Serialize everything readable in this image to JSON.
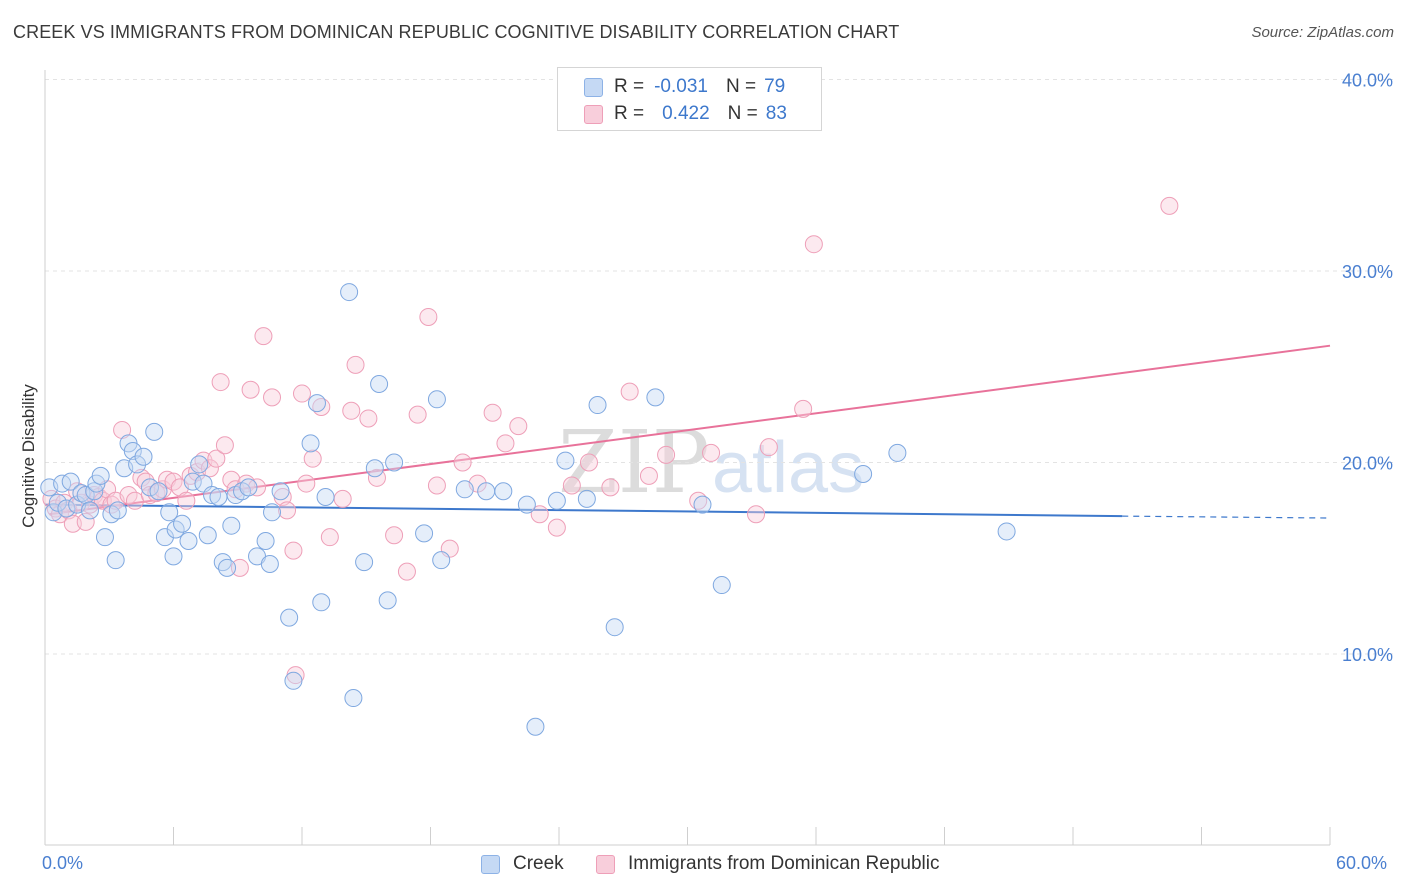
{
  "header": {
    "title": "CREEK VS IMMIGRANTS FROM DOMINICAN REPUBLIC COGNITIVE DISABILITY CORRELATION CHART",
    "source": "Source: ZipAtlas.com"
  },
  "legend": {
    "rows": [
      {
        "r_label": "R =",
        "r_value": "-0.031",
        "n_label": "N =",
        "n_value": "79"
      },
      {
        "r_label": "R =",
        "r_value": "0.422",
        "n_label": "N =",
        "n_value": "83"
      }
    ],
    "bottom": [
      "Creek",
      "Immigrants from Dominican Republic"
    ]
  },
  "watermark": {
    "zip": "ZIP",
    "atlas": "atlas"
  },
  "colors": {
    "creek": "#3d78cc",
    "creek_fill": "#c5d9f4",
    "dominican": "#e8729a",
    "dominican_fill": "#f8cedb"
  },
  "chart_data": {
    "type": "scatter",
    "title": "CREEK VS IMMIGRANTS FROM DOMINICAN REPUBLIC COGNITIVE DISABILITY CORRELATION CHART",
    "xlabel": "",
    "ylabel": "Cognitive Disability",
    "xlim": [
      0,
      60
    ],
    "ylim": [
      0,
      42
    ],
    "x_tick_labels": [
      "0.0%",
      "60.0%"
    ],
    "y_ticks": [
      10,
      20,
      30,
      40
    ],
    "y_tick_labels": [
      "10.0%",
      "20.0%",
      "30.0%",
      "40.0%"
    ],
    "grid": true,
    "legend_position": "top-center",
    "series": [
      {
        "name": "Creek",
        "r": -0.031,
        "n": 79,
        "trend": {
          "x": [
            0,
            50.3
          ],
          "y": [
            17.8,
            17.2
          ],
          "dashed_to_x": 60,
          "dashed_to_y": 17.1
        },
        "points": [
          [
            0.2,
            18.7
          ],
          [
            0.4,
            17.4
          ],
          [
            0.6,
            17.9
          ],
          [
            0.8,
            18.9
          ],
          [
            1.0,
            17.6
          ],
          [
            1.2,
            19.0
          ],
          [
            1.5,
            17.8
          ],
          [
            1.7,
            18.4
          ],
          [
            1.9,
            18.3
          ],
          [
            2.1,
            17.5
          ],
          [
            2.3,
            18.5
          ],
          [
            2.4,
            18.9
          ],
          [
            2.6,
            19.3
          ],
          [
            2.8,
            16.1
          ],
          [
            3.1,
            17.3
          ],
          [
            3.3,
            14.9
          ],
          [
            3.4,
            17.5
          ],
          [
            3.7,
            19.7
          ],
          [
            3.9,
            21.0
          ],
          [
            4.1,
            20.6
          ],
          [
            4.3,
            19.9
          ],
          [
            4.6,
            20.3
          ],
          [
            4.9,
            18.7
          ],
          [
            5.1,
            21.6
          ],
          [
            5.3,
            18.5
          ],
          [
            5.6,
            16.1
          ],
          [
            5.8,
            17.4
          ],
          [
            6.0,
            15.1
          ],
          [
            6.1,
            16.5
          ],
          [
            6.4,
            16.8
          ],
          [
            6.7,
            15.9
          ],
          [
            6.9,
            19.0
          ],
          [
            7.2,
            19.9
          ],
          [
            7.4,
            18.9
          ],
          [
            7.6,
            16.2
          ],
          [
            7.8,
            18.3
          ],
          [
            8.1,
            18.2
          ],
          [
            8.3,
            14.8
          ],
          [
            8.5,
            14.5
          ],
          [
            8.7,
            16.7
          ],
          [
            8.9,
            18.3
          ],
          [
            9.2,
            18.5
          ],
          [
            9.5,
            18.7
          ],
          [
            9.9,
            15.1
          ],
          [
            10.3,
            15.9
          ],
          [
            10.5,
            14.7
          ],
          [
            10.6,
            17.4
          ],
          [
            11.0,
            18.5
          ],
          [
            11.4,
            11.9
          ],
          [
            11.6,
            8.6
          ],
          [
            12.7,
            23.1
          ],
          [
            12.4,
            21.0
          ],
          [
            12.9,
            12.7
          ],
          [
            13.1,
            18.2
          ],
          [
            14.2,
            28.9
          ],
          [
            14.4,
            7.7
          ],
          [
            14.9,
            14.8
          ],
          [
            15.4,
            19.7
          ],
          [
            15.6,
            24.1
          ],
          [
            16.0,
            12.8
          ],
          [
            16.3,
            20.0
          ],
          [
            17.7,
            16.3
          ],
          [
            18.3,
            23.3
          ],
          [
            18.5,
            14.9
          ],
          [
            19.6,
            18.6
          ],
          [
            20.6,
            18.5
          ],
          [
            21.4,
            18.5
          ],
          [
            22.5,
            17.8
          ],
          [
            22.9,
            6.2
          ],
          [
            23.9,
            18.0
          ],
          [
            24.3,
            20.1
          ],
          [
            25.3,
            18.1
          ],
          [
            25.8,
            23.0
          ],
          [
            26.6,
            11.4
          ],
          [
            28.5,
            23.4
          ],
          [
            30.7,
            17.8
          ],
          [
            31.6,
            13.6
          ],
          [
            38.2,
            19.4
          ],
          [
            39.8,
            20.5
          ],
          [
            44.9,
            16.4
          ]
        ]
      },
      {
        "name": "Immigrants from Dominican Republic",
        "r": 0.422,
        "n": 83,
        "trend": {
          "x": [
            0.2,
            60
          ],
          "y": [
            17.3,
            26.1
          ]
        },
        "points": [
          [
            0.3,
            18.1
          ],
          [
            0.5,
            17.6
          ],
          [
            0.7,
            17.3
          ],
          [
            0.9,
            17.9
          ],
          [
            1.1,
            17.5
          ],
          [
            1.3,
            16.8
          ],
          [
            1.5,
            18.5
          ],
          [
            1.7,
            17.9
          ],
          [
            1.9,
            16.9
          ],
          [
            2.1,
            17.8
          ],
          [
            2.3,
            18.3
          ],
          [
            2.5,
            18.2
          ],
          [
            2.7,
            18.0
          ],
          [
            2.9,
            18.6
          ],
          [
            3.1,
            17.8
          ],
          [
            3.3,
            18.0
          ],
          [
            3.6,
            21.7
          ],
          [
            3.9,
            18.3
          ],
          [
            4.2,
            18.0
          ],
          [
            4.5,
            19.2
          ],
          [
            4.7,
            19.0
          ],
          [
            4.9,
            18.3
          ],
          [
            5.2,
            18.4
          ],
          [
            5.5,
            18.6
          ],
          [
            5.7,
            19.1
          ],
          [
            6.0,
            19.0
          ],
          [
            6.3,
            18.7
          ],
          [
            6.6,
            18.0
          ],
          [
            6.8,
            19.3
          ],
          [
            7.1,
            19.5
          ],
          [
            7.4,
            20.1
          ],
          [
            7.7,
            19.7
          ],
          [
            8.0,
            20.2
          ],
          [
            8.2,
            24.2
          ],
          [
            8.4,
            20.9
          ],
          [
            8.7,
            19.1
          ],
          [
            8.9,
            18.6
          ],
          [
            9.1,
            14.5
          ],
          [
            9.4,
            18.9
          ],
          [
            9.6,
            23.8
          ],
          [
            9.9,
            18.7
          ],
          [
            10.2,
            26.6
          ],
          [
            10.6,
            23.4
          ],
          [
            11.1,
            18.2
          ],
          [
            11.3,
            17.5
          ],
          [
            11.6,
            15.4
          ],
          [
            11.7,
            8.9
          ],
          [
            12.0,
            23.6
          ],
          [
            12.2,
            18.9
          ],
          [
            12.5,
            20.2
          ],
          [
            12.9,
            22.9
          ],
          [
            13.3,
            16.1
          ],
          [
            13.9,
            18.1
          ],
          [
            14.3,
            22.7
          ],
          [
            14.5,
            25.1
          ],
          [
            15.1,
            22.3
          ],
          [
            15.5,
            19.2
          ],
          [
            16.3,
            16.2
          ],
          [
            16.9,
            14.3
          ],
          [
            17.4,
            22.5
          ],
          [
            17.9,
            27.6
          ],
          [
            18.3,
            18.8
          ],
          [
            18.9,
            15.5
          ],
          [
            19.5,
            20.0
          ],
          [
            20.2,
            18.9
          ],
          [
            20.9,
            22.6
          ],
          [
            21.5,
            21.0
          ],
          [
            22.1,
            21.9
          ],
          [
            23.1,
            17.3
          ],
          [
            23.9,
            16.6
          ],
          [
            24.6,
            18.8
          ],
          [
            25.4,
            20.0
          ],
          [
            26.4,
            18.7
          ],
          [
            27.3,
            23.7
          ],
          [
            28.2,
            19.3
          ],
          [
            29.0,
            20.4
          ],
          [
            30.5,
            18.0
          ],
          [
            31.1,
            20.5
          ],
          [
            33.2,
            17.3
          ],
          [
            33.8,
            20.8
          ],
          [
            35.4,
            22.8
          ],
          [
            35.9,
            31.4
          ],
          [
            52.5,
            33.4
          ]
        ]
      }
    ]
  }
}
